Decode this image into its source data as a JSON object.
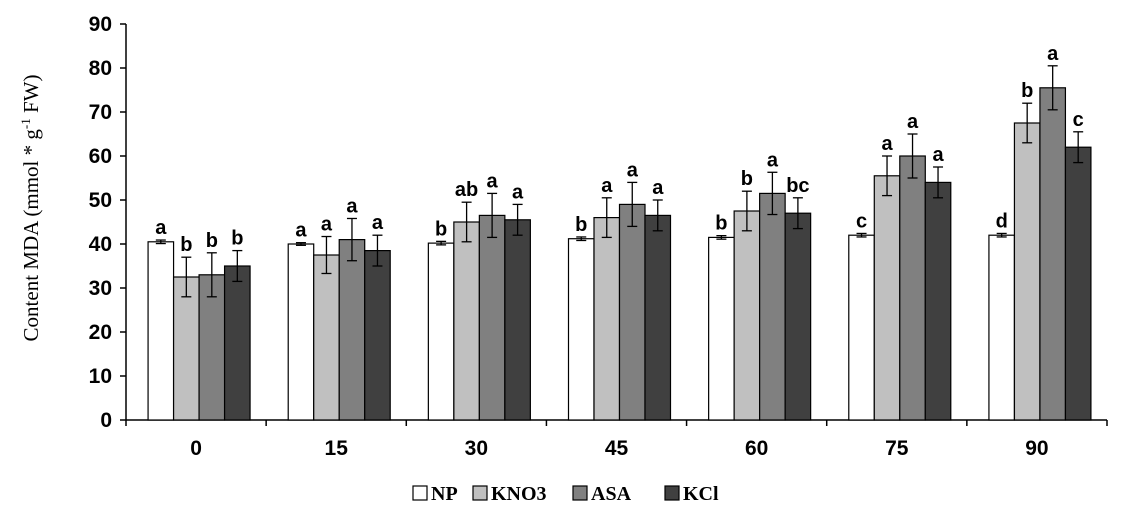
{
  "chart_data": {
    "type": "bar",
    "categories": [
      "0",
      "15",
      "30",
      "45",
      "60",
      "75",
      "90"
    ],
    "ylabel_main": "Content MDA (mmol * g",
    "ylabel_sup": "-1",
    "ylabel_tail": " FW)",
    "ylim": [
      0,
      90
    ],
    "yticks": [
      "0",
      "10",
      "20",
      "30",
      "40",
      "50",
      "60",
      "70",
      "80",
      "90"
    ],
    "legend_position": "bottom",
    "series": [
      {
        "name": "NP",
        "color": "#ffffff",
        "values": [
          40.5,
          40,
          40.2,
          41.2,
          41.5,
          42,
          42
        ],
        "errors": [
          0.4,
          0.3,
          0.4,
          0.4,
          0.4,
          0.4,
          0.4
        ],
        "labels": [
          "a",
          "a",
          "b",
          "b",
          "b",
          "c",
          "d"
        ]
      },
      {
        "name": "KNO3",
        "color": "#c0c0c0",
        "values": [
          32.5,
          37.5,
          45,
          46,
          47.5,
          55.5,
          67.5
        ],
        "errors": [
          4.5,
          4.2,
          4.5,
          4.5,
          4.5,
          4.5,
          4.5
        ],
        "labels": [
          "b",
          "a",
          "ab",
          "a",
          "b",
          "a",
          "b"
        ]
      },
      {
        "name": "ASA",
        "color": "#808080",
        "values": [
          33,
          41,
          46.5,
          49,
          51.5,
          60,
          75.5
        ],
        "errors": [
          5,
          4.8,
          5,
          5,
          4.8,
          5,
          5
        ],
        "labels": [
          "b",
          "a",
          "a",
          "a",
          "a",
          "a",
          "a"
        ]
      },
      {
        "name": "KCl",
        "color": "#404040",
        "values": [
          35,
          38.5,
          45.5,
          46.5,
          47,
          54,
          62
        ],
        "errors": [
          3.5,
          3.5,
          3.5,
          3.5,
          3.5,
          3.5,
          3.5
        ],
        "labels": [
          "b",
          "a",
          "a",
          "a",
          "bc",
          "a",
          "c"
        ]
      }
    ]
  }
}
